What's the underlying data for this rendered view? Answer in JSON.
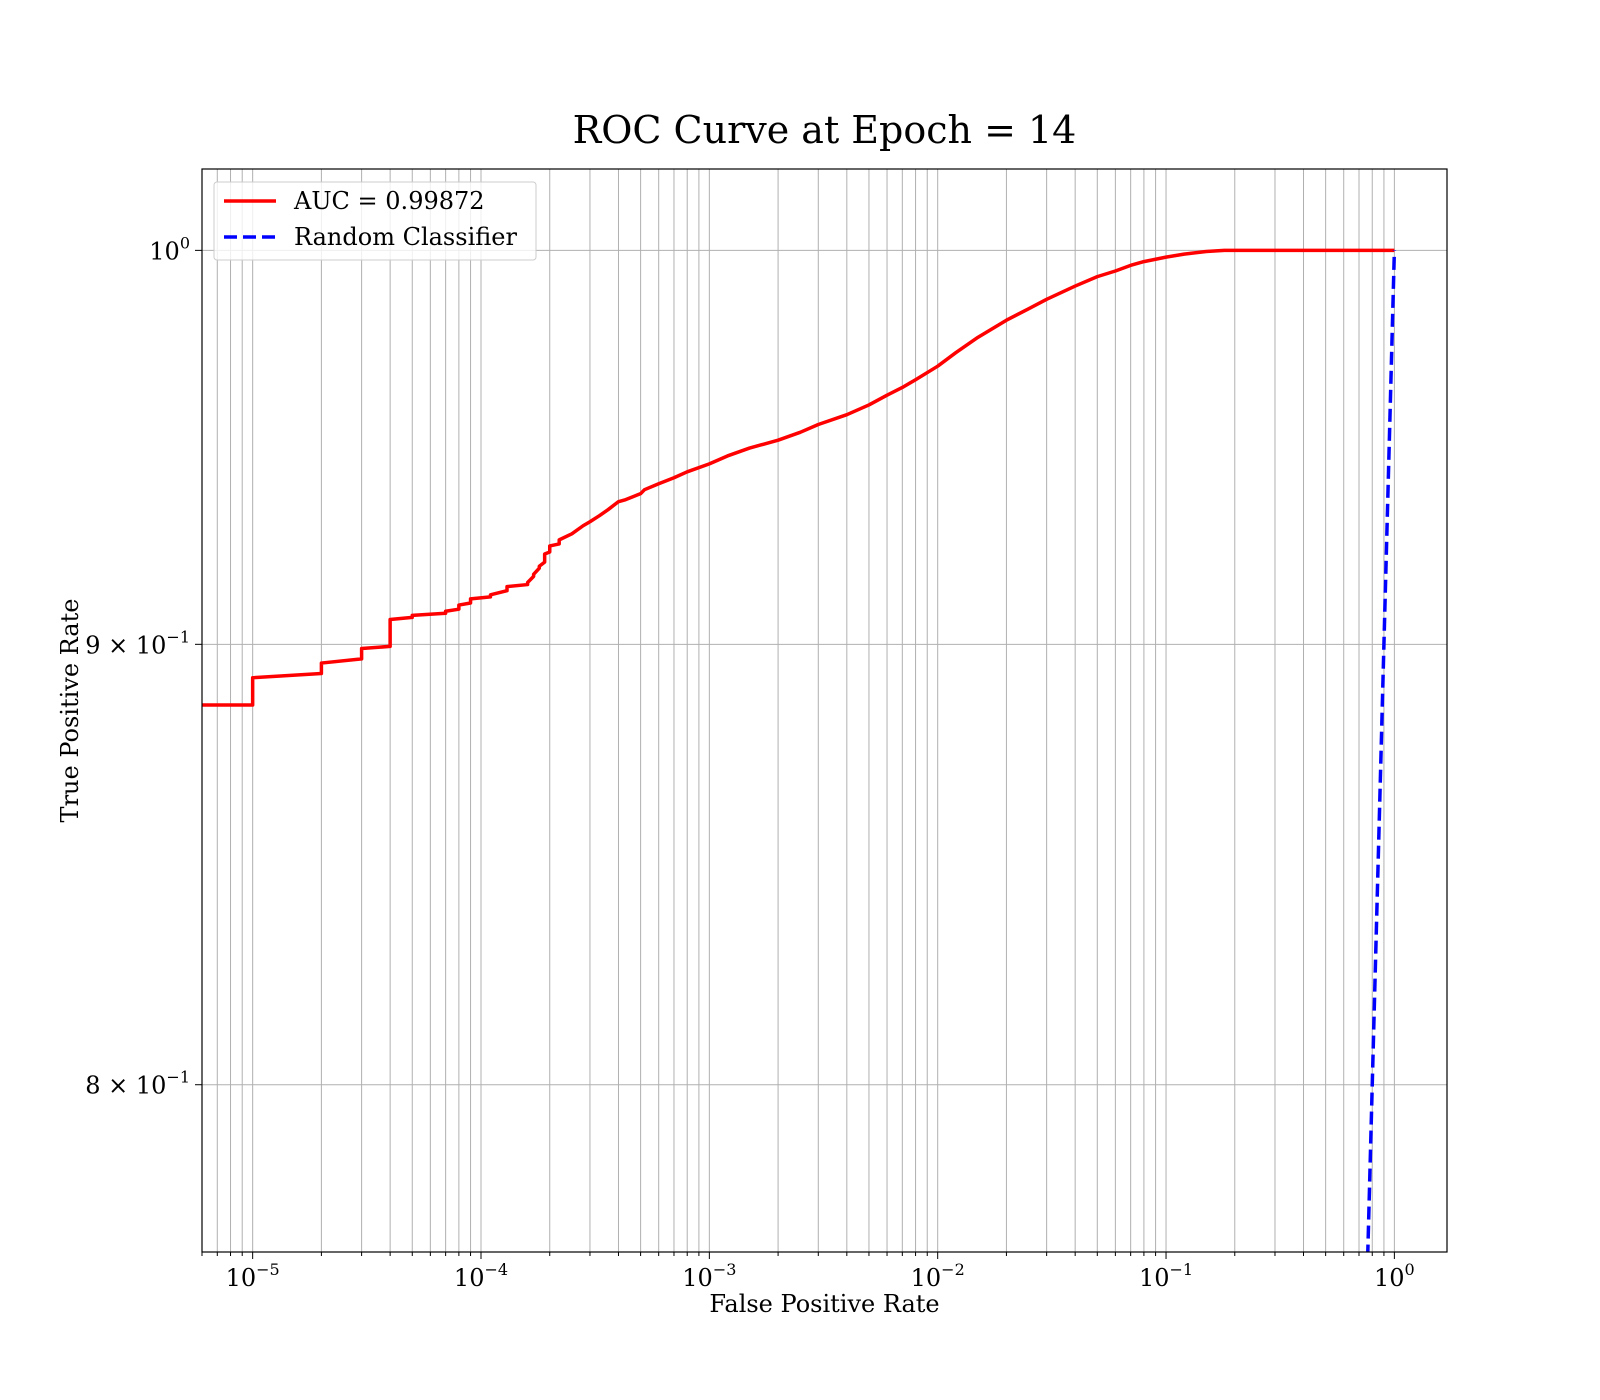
{
  "chart_data": {
    "type": "line",
    "title": "ROC Curve at Epoch = 14",
    "xlabel": "False Positive Rate",
    "ylabel": "True Positive Rate",
    "xscale": "log",
    "yscale": "log",
    "xlim": [
      6e-06,
      1.7
    ],
    "ylim": [
      0.765,
      1.022
    ],
    "grid": true,
    "grid_which": "both",
    "legend_position": "upper-left",
    "x_ticks": [
      {
        "value": 1e-05,
        "base": "10",
        "exp": "−5"
      },
      {
        "value": 0.0001,
        "base": "10",
        "exp": "−4"
      },
      {
        "value": 0.001,
        "base": "10",
        "exp": "−3"
      },
      {
        "value": 0.01,
        "base": "10",
        "exp": "−2"
      },
      {
        "value": 0.1,
        "base": "10",
        "exp": "−1"
      },
      {
        "value": 1,
        "base": "10",
        "exp": "0"
      }
    ],
    "y_ticks": [
      {
        "value": 1.0,
        "base": "10",
        "exp": "0"
      },
      {
        "value": 0.9,
        "base": "9 × 10",
        "exp": "−1"
      },
      {
        "value": 0.8,
        "base": "8 × 10",
        "exp": "−1"
      }
    ],
    "series": [
      {
        "name": "AUC = 0.99872",
        "color": "#ff0000",
        "style": "solid",
        "step": true,
        "x": [
          6e-06,
          1e-05,
          1e-05,
          2e-05,
          2e-05,
          3e-05,
          3e-05,
          4e-05,
          4e-05,
          5e-05,
          5e-05,
          7e-05,
          7e-05,
          8e-05,
          8e-05,
          9e-05,
          9e-05,
          0.00011,
          0.00011,
          0.00013,
          0.00013,
          0.00016,
          0.00016,
          0.00017,
          0.00017,
          0.00018,
          0.00018,
          0.00019,
          0.00019,
          0.0002,
          0.0002,
          0.00022,
          0.00022,
          0.00025,
          0.00028,
          0.0003,
          0.00033,
          0.00036,
          0.0004,
          0.00043,
          0.0005,
          0.00052,
          0.0006,
          0.0007,
          0.0008,
          0.001,
          0.0012,
          0.0015,
          0.002,
          0.0025,
          0.003,
          0.004,
          0.005,
          0.006,
          0.007,
          0.008,
          0.01,
          0.012,
          0.015,
          0.02,
          0.025,
          0.03,
          0.04,
          0.05,
          0.06,
          0.07,
          0.08,
          0.1,
          0.12,
          0.15,
          0.18,
          0.2,
          1.0
        ],
        "y": [
          0.8855,
          0.8855,
          0.892,
          0.893,
          0.8955,
          0.8965,
          0.899,
          0.8995,
          0.906,
          0.9065,
          0.907,
          0.9075,
          0.908,
          0.9085,
          0.9095,
          0.91,
          0.911,
          0.9115,
          0.912,
          0.913,
          0.914,
          0.9145,
          0.915,
          0.9165,
          0.917,
          0.9185,
          0.919,
          0.92,
          0.922,
          0.9225,
          0.924,
          0.9245,
          0.9255,
          0.927,
          0.929,
          0.93,
          0.9315,
          0.933,
          0.935,
          0.9355,
          0.937,
          0.938,
          0.9395,
          0.941,
          0.9425,
          0.9445,
          0.9465,
          0.9485,
          0.9505,
          0.9525,
          0.9545,
          0.957,
          0.9595,
          0.962,
          0.964,
          0.966,
          0.9695,
          0.973,
          0.977,
          0.9815,
          0.9845,
          0.987,
          0.9905,
          0.993,
          0.9945,
          0.996,
          0.997,
          0.9982,
          0.999,
          0.9997,
          1.0,
          1.0,
          1.0
        ]
      },
      {
        "name": "Random Classifier",
        "color": "#0000ff",
        "style": "dashed",
        "step": false,
        "x": [
          0.76,
          0.8,
          0.85,
          0.9,
          0.95,
          1.0
        ],
        "y": [
          0.76,
          0.8,
          0.85,
          0.9,
          0.95,
          1.0
        ]
      }
    ]
  }
}
